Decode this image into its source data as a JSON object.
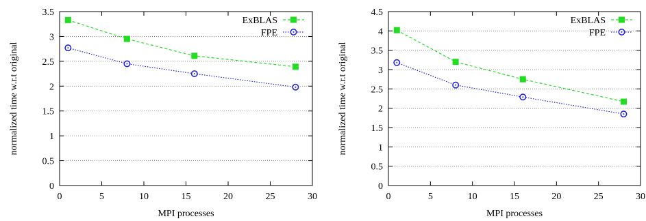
{
  "chart_data": [
    {
      "type": "line",
      "xlabel": "MPI processes",
      "ylabel": "normalized time w.r.t original",
      "xlim": [
        0,
        30
      ],
      "ylim": [
        0,
        3.5
      ],
      "xticks": [
        "0",
        "5",
        "10",
        "15",
        "20",
        "25",
        "30"
      ],
      "yticks": [
        "0",
        "0.5",
        "1",
        "1.5",
        "2",
        "2.5",
        "3",
        "3.5"
      ],
      "grid": "horizontal",
      "legend": "top-right",
      "x": [
        1,
        8,
        16,
        28
      ],
      "series": [
        {
          "name": "ExBLAS",
          "color": "#22dd22",
          "marker": "square",
          "line": "dashed",
          "values": [
            3.33,
            2.95,
            2.61,
            2.39
          ]
        },
        {
          "name": "FPE",
          "color": "#2222dd",
          "marker": "circle",
          "line": "dotted",
          "values": [
            2.77,
            2.45,
            2.25,
            1.98
          ]
        }
      ]
    },
    {
      "type": "line",
      "xlabel": "MPI processes",
      "ylabel": "normalized time w.r.t original",
      "xlim": [
        0,
        30
      ],
      "ylim": [
        0,
        4.5
      ],
      "xticks": [
        "0",
        "5",
        "10",
        "15",
        "20",
        "25",
        "30"
      ],
      "yticks": [
        "0",
        "0.5",
        "1",
        "1.5",
        "2",
        "2.5",
        "3",
        "3.5",
        "4",
        "4.5"
      ],
      "grid": "horizontal",
      "legend": "top-right",
      "x": [
        1,
        8,
        16,
        28
      ],
      "series": [
        {
          "name": "ExBLAS",
          "color": "#22dd22",
          "marker": "square",
          "line": "dashed",
          "values": [
            4.02,
            3.2,
            2.75,
            2.17
          ]
        },
        {
          "name": "FPE",
          "color": "#2222dd",
          "marker": "circle",
          "line": "dotted",
          "values": [
            3.18,
            2.6,
            2.29,
            1.85
          ]
        }
      ]
    }
  ]
}
